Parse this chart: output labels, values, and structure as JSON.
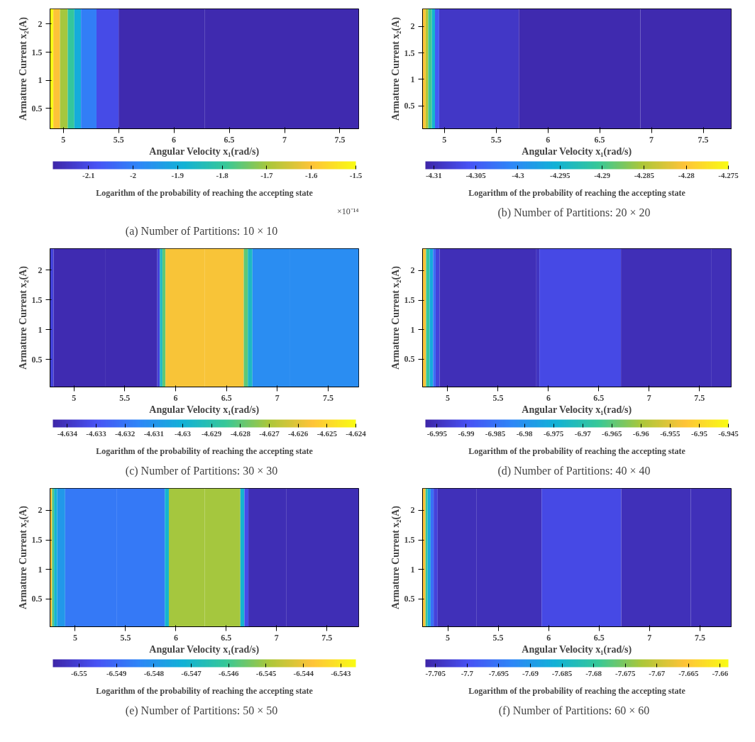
{
  "chart_data": [
    {
      "type": "heatmap",
      "title": "(a)  Number of Partitions:  10 × 10",
      "xlabel": "Angular Velocity x₁(rad/s)",
      "ylabel": "Armature Current x₂(A)",
      "clabel": "Logarithm of the probability of reaching the accepting state",
      "annotations": [
        "×10⁻¹⁴"
      ],
      "xlim": [
        4.88,
        7.67
      ],
      "ylim": [
        0.14,
        2.27
      ],
      "xticks": [
        5,
        5.5,
        6,
        6.5,
        7,
        7.5
      ],
      "yticks": [
        0.5,
        1,
        1.5,
        2
      ],
      "clim": [
        -2.18,
        -1.5
      ],
      "cticks": [
        -2.1,
        -2,
        -1.9,
        -1.8,
        -1.7,
        -1.6,
        -1.5
      ],
      "x": [
        4.895,
        4.925,
        5.015,
        5.065,
        5.135,
        5.185,
        5.415,
        5.585,
        6.975
      ],
      "cells": [
        [
          -1.5,
          -1.6,
          -1.7,
          -1.8,
          -1.9,
          -2,
          -2.1,
          -2.17,
          -2.17
        ]
      ]
    },
    {
      "type": "heatmap",
      "title": "(b)  Number of Partitions:  20 × 20",
      "xlabel": "Angular Velocity x₁(rad/s)",
      "ylabel": "Armature Current x₂(A)",
      "clabel": "Logarithm of the probability of reaching the accepting state",
      "xlim": [
        4.79,
        7.77
      ],
      "ylim": [
        0.07,
        2.33
      ],
      "xticks": [
        5,
        5.5,
        6,
        6.5,
        7,
        7.5
      ],
      "yticks": [
        0.5,
        1,
        1.5,
        2
      ],
      "clim": [
        -4.311,
        -4.275
      ],
      "cticks": [
        -4.31,
        -4.305,
        -4.3,
        -4.295,
        -4.29,
        -4.285,
        -4.28,
        -4.275
      ],
      "x": [
        4.805,
        4.835,
        4.855,
        4.905,
        4.915,
        4.985,
        6.455,
        7.332
      ],
      "cells": [
        [
          -4.28,
          -4.285,
          -4.29,
          -4.295,
          -4.305,
          -4.309,
          -4.3105,
          -4.3105
        ]
      ]
    },
    {
      "type": "heatmap",
      "title": "(c)  Number of Partitions:  30 × 30",
      "xlabel": "Angular Velocity x₁(rad/s)",
      "ylabel": "Armature Current x₂(A)",
      "clabel": "Logarithm of the probability of reaching the accepting state",
      "xlim": [
        4.765,
        7.8
      ],
      "ylim": [
        0.04,
        2.36
      ],
      "xticks": [
        5,
        5.5,
        6,
        6.5,
        7,
        7.5
      ],
      "yticks": [
        0.5,
        1,
        1.5,
        2
      ],
      "clim": [
        -4.6345,
        -4.624
      ],
      "cticks": [
        -4.634,
        -4.633,
        -4.632,
        -4.631,
        -4.63,
        -4.629,
        -4.628,
        -4.627,
        -4.626,
        -4.625,
        -4.624
      ],
      "x": [
        4.783,
        4.817,
        5.8075,
        5.8325,
        5.8575,
        5.8825,
        5.9175,
        6.65,
        6.69,
        6.73,
        6.78,
        7.46
      ],
      "cells": [
        [
          -4.6335,
          -4.6343,
          -4.6343,
          -4.6335,
          -4.6295,
          -4.628,
          -4.6256,
          -4.6256,
          -4.628,
          -4.6295,
          -4.6313,
          -4.6313
        ]
      ]
    },
    {
      "type": "heatmap",
      "title": "(d)  Number of Partitions:  40 × 40",
      "xlabel": "Angular Velocity x₁(rad/s)",
      "ylabel": "Armature Current x₂(A)",
      "clabel": "Logarithm of the probability of reaching the accepting state",
      "xlim": [
        4.75,
        7.815
      ],
      "ylim": [
        0.03,
        2.37
      ],
      "xticks": [
        5,
        5.5,
        6,
        6.5,
        7,
        7.5
      ],
      "yticks": [
        0.5,
        1,
        1.5,
        2
      ],
      "clim": [
        -6.997,
        -6.945
      ],
      "cticks": [
        -6.995,
        -6.99,
        -6.985,
        -6.98,
        -6.975,
        -6.97,
        -6.965,
        -6.96,
        -6.955,
        -6.95,
        -6.945
      ],
      "x": [
        4.7675,
        4.8025,
        4.8375,
        4.8725,
        4.8875,
        4.9525,
        5.865,
        5.895,
        5.925,
        7.515,
        7.715
      ],
      "cells": [
        [
          -6.953,
          -6.968,
          -6.976,
          -6.986,
          -6.992,
          -6.9955,
          -6.9955,
          -6.9945,
          -6.991,
          -6.9955,
          -6.9955
        ]
      ]
    },
    {
      "type": "heatmap",
      "title": "(e)  Number of Partitions:  50 × 50",
      "xlabel": "Angular Velocity x₁(rad/s)",
      "ylabel": "Armature Current x₂(A)",
      "clabel": "Logarithm of the probability of reaching the accepting state",
      "xlim": [
        4.75,
        7.815
      ],
      "ylim": [
        0.03,
        2.37
      ],
      "xticks": [
        5,
        5.5,
        6,
        6.5,
        7,
        7.5
      ],
      "yticks": [
        0.5,
        1,
        1.5,
        2
      ],
      "clim": [
        -6.5507,
        -6.5426
      ],
      "cticks": [
        -6.55,
        -6.549,
        -6.548,
        -6.547,
        -6.546,
        -6.545,
        -6.544,
        -6.543
      ],
      "x": [
        4.76,
        4.78,
        4.8,
        4.84,
        4.96,
        5.87,
        5.91,
        5.95,
        6.62,
        6.66,
        6.7,
        6.74,
        7.457
      ],
      "cells": [
        [
          -6.5438,
          -6.5458,
          -6.5471,
          -6.5479,
          -6.5487,
          -6.5487,
          -6.5471,
          -6.545,
          -6.545,
          -6.5471,
          -6.5497,
          -6.5505,
          -6.5505
        ]
      ]
    },
    {
      "type": "heatmap",
      "title": "(f)  Number of Partitions:  60 × 60",
      "xlabel": "Angular Velocity x₁(rad/s)",
      "ylabel": "Armature Current x₂(A)",
      "clabel": "Logarithm of the probability of reaching the accepting state",
      "xlim": [
        4.75,
        7.81
      ],
      "ylim": [
        0.03,
        2.37
      ],
      "xticks": [
        5,
        5.5,
        6,
        6.5,
        7,
        7.5
      ],
      "yticks": [
        0.5,
        1,
        1.5,
        2
      ],
      "clim": [
        -7.7066,
        -7.6587
      ],
      "cticks": [
        -7.705,
        -7.7,
        -7.695,
        -7.69,
        -7.685,
        -7.68,
        -7.675,
        -7.67,
        -7.665,
        -7.66
      ],
      "x": [
        4.765,
        4.795,
        4.805,
        4.855,
        4.865,
        4.935,
        5.63,
        6.23,
        7.21,
        7.61
      ],
      "cells": [
        [
          -7.666,
          -7.68,
          -7.6875,
          -7.696,
          -7.702,
          -7.705,
          -7.705,
          -7.701,
          -7.705,
          -7.705
        ]
      ]
    }
  ]
}
